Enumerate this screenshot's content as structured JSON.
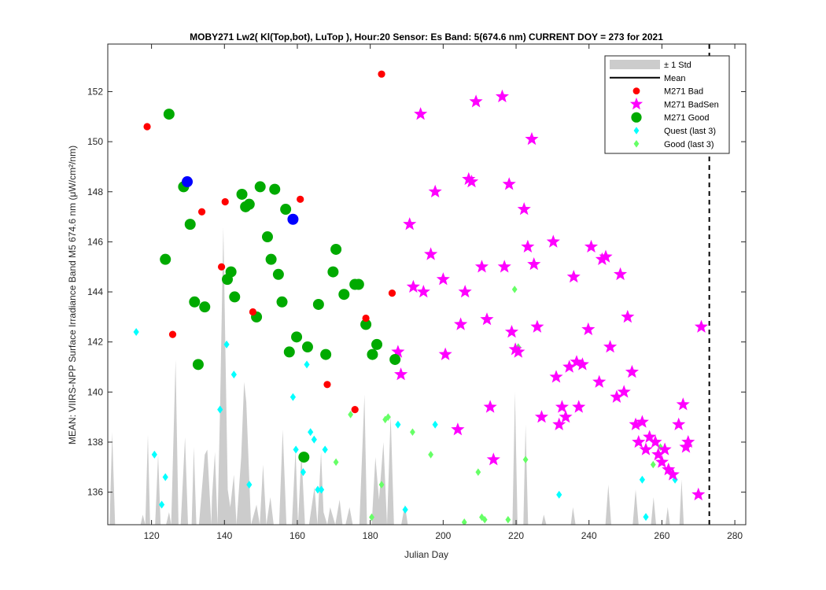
{
  "chart_data": {
    "type": "scatter",
    "title": "MOBY271   Lw2( Kl(Top,bot), LuTop ),   Hour:20 Sensor: Es Band: 5(674.6 nm)   CURRENT DOY = 273 for 2021",
    "xlabel": "Julian Day",
    "ylabel": "MEAN: VIIRS-NPP Surface Irradiance Band M5 674.6 nm (μW/cm²/nm)",
    "xlim": [
      108,
      283
    ],
    "ylim": [
      134.7,
      153.9
    ],
    "xticks": [
      120,
      140,
      160,
      180,
      200,
      220,
      240,
      260,
      280
    ],
    "yticks": [
      136,
      138,
      140,
      142,
      144,
      146,
      148,
      150,
      152
    ],
    "grid": false,
    "legend_position": "top-right",
    "current_doy": 273,
    "colors": {
      "std_fill": "#cccccc",
      "mean": "#000000",
      "bad": "#ff0000",
      "badsen": "#ff00ff",
      "good": "#00aa00",
      "highlight": "#0000ff",
      "quest": "#00ffff",
      "good_last3": "#66ff66"
    },
    "legend": [
      {
        "label": "± 1 Std",
        "kind": "patch"
      },
      {
        "label": "Mean",
        "kind": "line"
      },
      {
        "label": "M271 Bad",
        "kind": "dot-red"
      },
      {
        "label": "M271 BadSen",
        "kind": "star"
      },
      {
        "label": "M271 Good",
        "kind": "dot-green"
      },
      {
        "label": "Quest (last 3)",
        "kind": "diamond-cyan"
      },
      {
        "label": "Good (last 3)",
        "kind": "diamond-green"
      }
    ],
    "std_band": [
      [
        108.5,
        134.7
      ],
      [
        109.2,
        138.4
      ],
      [
        110,
        134.7
      ],
      [
        117,
        134.7
      ],
      [
        117.6,
        135.1
      ],
      [
        118.3,
        134.7
      ],
      [
        119,
        138.3
      ],
      [
        119.6,
        134.7
      ],
      [
        121,
        134.7
      ],
      [
        121.8,
        137.5
      ],
      [
        122.5,
        134.7
      ],
      [
        124,
        134.7
      ],
      [
        124.8,
        135.2
      ],
      [
        125.4,
        134.7
      ],
      [
        126.6,
        141.3
      ],
      [
        127.4,
        134.7
      ],
      [
        128,
        134.7
      ],
      [
        129.2,
        138.2
      ],
      [
        130,
        134.7
      ],
      [
        131,
        134.7
      ],
      [
        131.6,
        137.8
      ],
      [
        132.3,
        134.7
      ],
      [
        133,
        134.7
      ],
      [
        134.6,
        137.5
      ],
      [
        135.3,
        137.7
      ],
      [
        136.4,
        134.7
      ],
      [
        136.6,
        135.8
      ],
      [
        137.4,
        137.6
      ],
      [
        138.1,
        134.7
      ],
      [
        138.8,
        139.3
      ],
      [
        139.7,
        146.6
      ],
      [
        140.9,
        136.1
      ],
      [
        141.6,
        135.4
      ],
      [
        142.6,
        136.7
      ],
      [
        143.3,
        134.7
      ],
      [
        144.6,
        137.4
      ],
      [
        145.4,
        140.4
      ],
      [
        146,
        139.6
      ],
      [
        147.3,
        134.7
      ],
      [
        148.8,
        135.5
      ],
      [
        149.7,
        134.7
      ],
      [
        150.6,
        137.1
      ],
      [
        151.5,
        134.7
      ],
      [
        152.6,
        135.8
      ],
      [
        153.5,
        134.7
      ],
      [
        155,
        134.7
      ],
      [
        156,
        138.5
      ],
      [
        157,
        134.7
      ],
      [
        158.5,
        134.7
      ],
      [
        159.5,
        137.7
      ],
      [
        160.2,
        134.7
      ],
      [
        161.1,
        137.6
      ],
      [
        162.1,
        134.7
      ],
      [
        163.2,
        134.7
      ],
      [
        164.7,
        136.2
      ],
      [
        165.5,
        134.7
      ],
      [
        166.5,
        137.6
      ],
      [
        167.2,
        135.2
      ],
      [
        168.2,
        134.7
      ],
      [
        169,
        135.4
      ],
      [
        170.4,
        134.7
      ],
      [
        171.6,
        135.7
      ],
      [
        172.4,
        134.7
      ],
      [
        173.2,
        134.7
      ],
      [
        174.3,
        135.4
      ],
      [
        175.2,
        134.7
      ],
      [
        177,
        134.7
      ],
      [
        178.4,
        139.9
      ],
      [
        179.1,
        134.7
      ],
      [
        180.4,
        134.7
      ],
      [
        181.4,
        137.4
      ],
      [
        182.4,
        135.7
      ],
      [
        183.6,
        138
      ],
      [
        184.6,
        134.7
      ],
      [
        185.6,
        139.1
      ],
      [
        186.5,
        134.7
      ],
      [
        188.5,
        134.7
      ],
      [
        189.5,
        135.5
      ],
      [
        190.3,
        134.7
      ],
      [
        219,
        134.7
      ],
      [
        219.7,
        140
      ],
      [
        220.4,
        134.7
      ],
      [
        222,
        134.7
      ],
      [
        222.6,
        138.7
      ],
      [
        223.3,
        134.7
      ],
      [
        227,
        134.7
      ],
      [
        227.6,
        135.1
      ],
      [
        228.3,
        134.7
      ],
      [
        235,
        134.7
      ],
      [
        235.6,
        135.4
      ],
      [
        236.3,
        134.7
      ],
      [
        244.5,
        134.7
      ],
      [
        245.3,
        136.3
      ],
      [
        246.1,
        134.7
      ],
      [
        252,
        134.7
      ],
      [
        252.8,
        136.1
      ],
      [
        253.6,
        134.7
      ],
      [
        257,
        134.7
      ],
      [
        257.7,
        135.8
      ],
      [
        258.4,
        134.7
      ],
      [
        261,
        134.7
      ],
      [
        261.6,
        135.4
      ],
      [
        262.2,
        134.7
      ],
      [
        264.8,
        134.7
      ],
      [
        265.4,
        136.5
      ],
      [
        266,
        134.7
      ]
    ],
    "series": [
      {
        "name": "M271 Bad",
        "points": [
          [
            118.8,
            150.6
          ],
          [
            125.8,
            142.3
          ],
          [
            133.8,
            147.2
          ],
          [
            139.2,
            145
          ],
          [
            140.2,
            147.6
          ],
          [
            147.8,
            143.2
          ],
          [
            160.8,
            147.7
          ],
          [
            168.2,
            140.3
          ],
          [
            175.8,
            139.3
          ],
          [
            178.8,
            142.95
          ],
          [
            183.1,
            152.7
          ],
          [
            186,
            143.95
          ]
        ]
      },
      {
        "name": "M271 BadSen",
        "points": [
          [
            187.6,
            141.6
          ],
          [
            188.4,
            140.7
          ],
          [
            190.8,
            146.7
          ],
          [
            191.8,
            144.2
          ],
          [
            193.8,
            151.1
          ],
          [
            194.6,
            144
          ],
          [
            196.6,
            145.5
          ],
          [
            197.8,
            148
          ],
          [
            200,
            144.5
          ],
          [
            200.6,
            141.5
          ],
          [
            204,
            138.5
          ],
          [
            204.8,
            142.7
          ],
          [
            206,
            144
          ],
          [
            207,
            148.5
          ],
          [
            207.8,
            148.4
          ],
          [
            209,
            151.6
          ],
          [
            210.6,
            145
          ],
          [
            212,
            142.9
          ],
          [
            212.9,
            139.4
          ],
          [
            213.8,
            137.3
          ],
          [
            216.2,
            151.8
          ],
          [
            216.8,
            145
          ],
          [
            218.1,
            148.3
          ],
          [
            218.8,
            142.4
          ],
          [
            219.8,
            141.7
          ],
          [
            220.6,
            141.6
          ],
          [
            222.2,
            147.3
          ],
          [
            223.2,
            145.8
          ],
          [
            224.3,
            150.1
          ],
          [
            224.9,
            145.1
          ],
          [
            225.8,
            142.6
          ],
          [
            227,
            139
          ],
          [
            230.2,
            146
          ],
          [
            231,
            140.6
          ],
          [
            231.8,
            138.7
          ],
          [
            232.6,
            139.4
          ],
          [
            233.6,
            139
          ],
          [
            234.6,
            141
          ],
          [
            235.8,
            144.6
          ],
          [
            236.6,
            141.2
          ],
          [
            237.2,
            139.4
          ],
          [
            238.2,
            141.1
          ],
          [
            239.8,
            142.5
          ],
          [
            240.6,
            145.8
          ],
          [
            242.8,
            140.4
          ],
          [
            243.6,
            145.3
          ],
          [
            244.6,
            145.4
          ],
          [
            245.8,
            141.8
          ],
          [
            247.6,
            139.8
          ],
          [
            248.6,
            144.7
          ],
          [
            249.6,
            140
          ],
          [
            250.6,
            143
          ],
          [
            251.8,
            140.8
          ],
          [
            252.8,
            138.7
          ],
          [
            253.6,
            138
          ],
          [
            254.6,
            138.8
          ],
          [
            255.6,
            137.7
          ],
          [
            256.6,
            138.2
          ],
          [
            258.2,
            138
          ],
          [
            259,
            137.5
          ],
          [
            260,
            137.2
          ],
          [
            260.8,
            137.7
          ],
          [
            261.8,
            136.9
          ],
          [
            263,
            136.7
          ],
          [
            264.6,
            138.7
          ],
          [
            265.8,
            139.5
          ],
          [
            266.6,
            137.8
          ],
          [
            267.2,
            138
          ],
          [
            270,
            135.9
          ],
          [
            270.8,
            142.6
          ]
        ]
      },
      {
        "name": "M271 Good",
        "points": [
          [
            123.8,
            145.3
          ],
          [
            124.8,
            151.1
          ],
          [
            128.8,
            148.2
          ],
          [
            130.6,
            146.7
          ],
          [
            131.8,
            143.6
          ],
          [
            132.8,
            141.1
          ],
          [
            134.6,
            143.4
          ],
          [
            140.8,
            144.5
          ],
          [
            141.8,
            144.8
          ],
          [
            142.8,
            143.8
          ],
          [
            144.8,
            147.9
          ],
          [
            145.8,
            147.4
          ],
          [
            146.8,
            147.5
          ],
          [
            148.8,
            143
          ],
          [
            149.8,
            148.2
          ],
          [
            151.8,
            146.2
          ],
          [
            152.8,
            145.3
          ],
          [
            153.8,
            148.1
          ],
          [
            154.8,
            144.7
          ],
          [
            155.8,
            143.6
          ],
          [
            156.8,
            147.3
          ],
          [
            157.8,
            141.6
          ],
          [
            159.8,
            142.2
          ],
          [
            161.8,
            137.4
          ],
          [
            162.8,
            141.8
          ],
          [
            165.8,
            143.5
          ],
          [
            167.8,
            141.5
          ],
          [
            169.8,
            144.8
          ],
          [
            170.6,
            145.7
          ],
          [
            172.8,
            143.9
          ],
          [
            175.8,
            144.3
          ],
          [
            176.8,
            144.3
          ],
          [
            178.8,
            142.7
          ],
          [
            180.6,
            141.5
          ],
          [
            181.8,
            141.9
          ],
          [
            186.8,
            141.3
          ]
        ]
      },
      {
        "name": "M271 Good (highlighted)",
        "points": [
          [
            129.8,
            148.4
          ],
          [
            158.8,
            146.9
          ]
        ]
      },
      {
        "name": "Quest (last 3)",
        "points": [
          [
            115.8,
            142.4
          ],
          [
            120.8,
            137.5
          ],
          [
            122.8,
            135.5
          ],
          [
            123.8,
            136.6
          ],
          [
            138.8,
            139.3
          ],
          [
            140.6,
            141.9
          ],
          [
            142.6,
            140.7
          ],
          [
            146.8,
            136.3
          ],
          [
            158.8,
            139.8
          ],
          [
            159.6,
            137.7
          ],
          [
            161.6,
            136.8
          ],
          [
            162.6,
            141.1
          ],
          [
            163.6,
            138.4
          ],
          [
            164.6,
            138.1
          ],
          [
            165.6,
            136.1
          ],
          [
            166.6,
            136.1
          ],
          [
            167.6,
            137.7
          ],
          [
            187.6,
            138.7
          ],
          [
            189.6,
            135.3
          ],
          [
            197.8,
            138.7
          ],
          [
            231.8,
            135.9
          ],
          [
            254.6,
            136.5
          ],
          [
            255.6,
            135.01
          ],
          [
            263.6,
            136.5
          ]
        ]
      },
      {
        "name": "Good (last 3)",
        "points": [
          [
            174.6,
            139.1
          ],
          [
            184.1,
            138.9
          ],
          [
            184.9,
            139
          ],
          [
            191.6,
            138.4
          ],
          [
            196.6,
            137.5
          ],
          [
            205.8,
            134.8
          ],
          [
            209.6,
            136.8
          ],
          [
            210.6,
            135
          ],
          [
            211.4,
            134.9
          ],
          [
            217.8,
            134.9
          ],
          [
            219.6,
            144.1
          ],
          [
            220.6,
            141.8
          ],
          [
            222.6,
            137.3
          ],
          [
            257.6,
            137.1
          ],
          [
            259.6,
            137.8
          ],
          [
            170.6,
            137.2
          ],
          [
            180.4,
            135
          ],
          [
            183.1,
            136.3
          ]
        ]
      }
    ]
  }
}
